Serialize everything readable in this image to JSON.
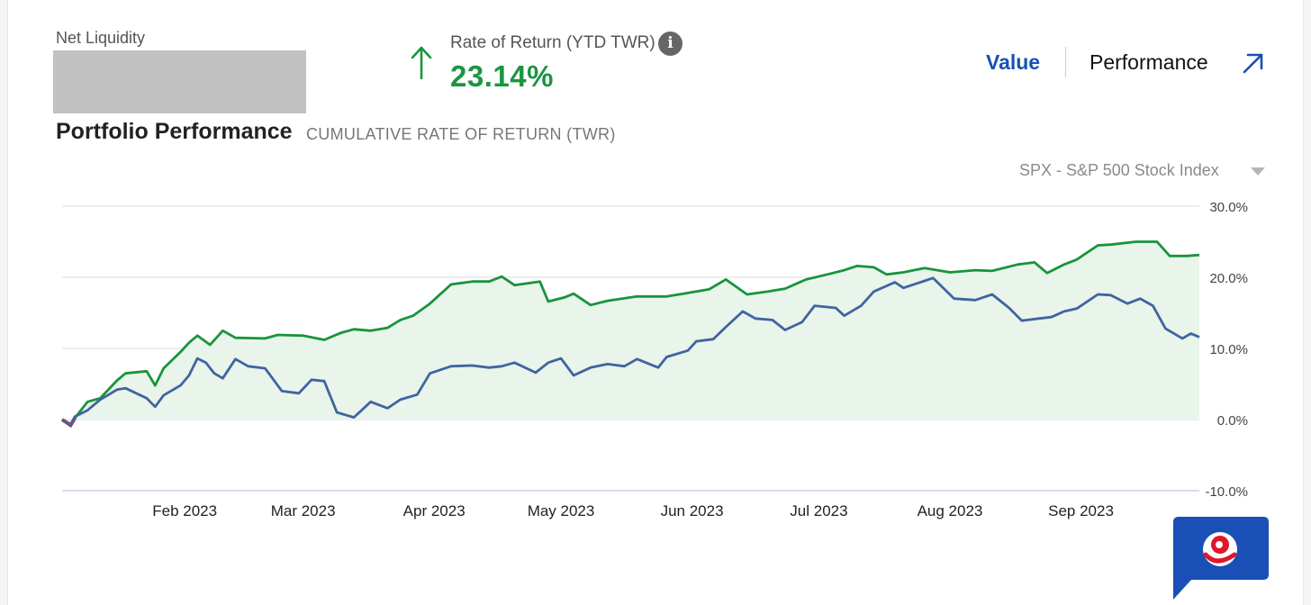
{
  "summary": {
    "net_liquidity_label": "Net Liquidity",
    "rate_of_return_label": "Rate of Return (YTD TWR)",
    "rate_of_return_value": "23.14%",
    "info_icon": "i"
  },
  "tabs": {
    "value_label": "Value",
    "performance_label": "Performance"
  },
  "header": {
    "title": "Portfolio Performance",
    "subtitle": "CUMULATIVE RATE OF RETURN (TWR)",
    "benchmark_select": "SPX - S&P 500 Stock Index"
  },
  "colors": {
    "portfolio": "#18943c",
    "benchmark": "#3f64a0",
    "area_fill": "#e9f4ea",
    "accent_blue": "#1a4fb5",
    "negative": "#e0162b"
  },
  "chart_data": {
    "type": "line",
    "ylim": [
      -10,
      30
    ],
    "y_ticks": [
      "30.0%",
      "20.0%",
      "10.0%",
      "0.0%",
      "-10.0%"
    ],
    "y_tick_values": [
      30,
      20,
      10,
      0,
      -10
    ],
    "x_range": [
      "2023-01-03",
      "2023-09-29"
    ],
    "x_ticks": [
      {
        "label": "Feb 2023",
        "date": "2023-02-01"
      },
      {
        "label": "Mar 2023",
        "date": "2023-03-01"
      },
      {
        "label": "Apr 2023",
        "date": "2023-04-01"
      },
      {
        "label": "May 2023",
        "date": "2023-05-01"
      },
      {
        "label": "Jun 2023",
        "date": "2023-06-01"
      },
      {
        "label": "Jul 2023",
        "date": "2023-07-01"
      },
      {
        "label": "Aug 2023",
        "date": "2023-08-01"
      },
      {
        "label": "Sep 2023",
        "date": "2023-09-01"
      }
    ],
    "grid": true,
    "series": [
      {
        "key": "portfolio",
        "points": [
          [
            "2023-01-03",
            0
          ],
          [
            "2023-01-05",
            -0.8
          ],
          [
            "2023-01-06",
            0.2
          ],
          [
            "2023-01-09",
            2.5
          ],
          [
            "2023-01-12",
            3.0
          ],
          [
            "2023-01-16",
            5.5
          ],
          [
            "2023-01-18",
            6.5
          ],
          [
            "2023-01-23",
            6.8
          ],
          [
            "2023-01-25",
            4.8
          ],
          [
            "2023-01-27",
            7.2
          ],
          [
            "2023-01-31",
            9.5
          ],
          [
            "2023-02-02",
            10.8
          ],
          [
            "2023-02-04",
            11.8
          ],
          [
            "2023-02-07",
            10.5
          ],
          [
            "2023-02-10",
            12.5
          ],
          [
            "2023-02-13",
            11.5
          ],
          [
            "2023-02-20",
            11.4
          ],
          [
            "2023-02-23",
            11.9
          ],
          [
            "2023-03-01",
            11.8
          ],
          [
            "2023-03-06",
            11.2
          ],
          [
            "2023-03-10",
            12.2
          ],
          [
            "2023-03-13",
            12.7
          ],
          [
            "2023-03-17",
            12.5
          ],
          [
            "2023-03-21",
            12.9
          ],
          [
            "2023-03-24",
            14.0
          ],
          [
            "2023-03-27",
            14.6
          ],
          [
            "2023-03-31",
            16.3
          ],
          [
            "2023-04-05",
            19.0
          ],
          [
            "2023-04-10",
            19.4
          ],
          [
            "2023-04-14",
            19.4
          ],
          [
            "2023-04-17",
            20.1
          ],
          [
            "2023-04-20",
            18.9
          ],
          [
            "2023-04-26",
            19.4
          ],
          [
            "2023-04-28",
            16.6
          ],
          [
            "2023-05-02",
            17.2
          ],
          [
            "2023-05-04",
            17.7
          ],
          [
            "2023-05-08",
            16.1
          ],
          [
            "2023-05-12",
            16.7
          ],
          [
            "2023-05-19",
            17.3
          ],
          [
            "2023-05-26",
            17.3
          ],
          [
            "2023-05-31",
            17.8
          ],
          [
            "2023-06-05",
            18.3
          ],
          [
            "2023-06-09",
            19.7
          ],
          [
            "2023-06-14",
            17.6
          ],
          [
            "2023-06-19",
            18.0
          ],
          [
            "2023-06-23",
            18.4
          ],
          [
            "2023-06-28",
            19.7
          ],
          [
            "2023-07-03",
            20.4
          ],
          [
            "2023-07-07",
            21.0
          ],
          [
            "2023-07-10",
            21.6
          ],
          [
            "2023-07-14",
            21.4
          ],
          [
            "2023-07-17",
            20.4
          ],
          [
            "2023-07-21",
            20.7
          ],
          [
            "2023-07-26",
            21.3
          ],
          [
            "2023-08-01",
            20.7
          ],
          [
            "2023-08-07",
            21.0
          ],
          [
            "2023-08-11",
            20.9
          ],
          [
            "2023-08-17",
            21.8
          ],
          [
            "2023-08-21",
            22.1
          ],
          [
            "2023-08-24",
            20.6
          ],
          [
            "2023-08-28",
            21.8
          ],
          [
            "2023-08-31",
            22.5
          ],
          [
            "2023-09-05",
            24.5
          ],
          [
            "2023-09-08",
            24.6
          ],
          [
            "2023-09-14",
            25.0
          ],
          [
            "2023-09-19",
            25.0
          ],
          [
            "2023-09-22",
            23.0
          ],
          [
            "2023-09-26",
            23.0
          ],
          [
            "2023-09-29",
            23.14
          ]
        ]
      },
      {
        "key": "benchmark",
        "points": [
          [
            "2023-01-03",
            0
          ],
          [
            "2023-01-05",
            -0.8
          ],
          [
            "2023-01-06",
            0.4
          ],
          [
            "2023-01-09",
            1.3
          ],
          [
            "2023-01-12",
            2.8
          ],
          [
            "2023-01-16",
            4.2
          ],
          [
            "2023-01-18",
            4.4
          ],
          [
            "2023-01-23",
            3.0
          ],
          [
            "2023-01-25",
            1.8
          ],
          [
            "2023-01-27",
            3.4
          ],
          [
            "2023-01-31",
            4.8
          ],
          [
            "2023-02-02",
            6.2
          ],
          [
            "2023-02-04",
            8.6
          ],
          [
            "2023-02-06",
            8.0
          ],
          [
            "2023-02-08",
            6.5
          ],
          [
            "2023-02-10",
            5.8
          ],
          [
            "2023-02-13",
            8.5
          ],
          [
            "2023-02-16",
            7.5
          ],
          [
            "2023-02-20",
            7.2
          ],
          [
            "2023-02-24",
            4.0
          ],
          [
            "2023-02-28",
            3.7
          ],
          [
            "2023-03-03",
            5.6
          ],
          [
            "2023-03-06",
            5.4
          ],
          [
            "2023-03-09",
            1.0
          ],
          [
            "2023-03-13",
            0.3
          ],
          [
            "2023-03-17",
            2.5
          ],
          [
            "2023-03-21",
            1.6
          ],
          [
            "2023-03-24",
            2.8
          ],
          [
            "2023-03-28",
            3.5
          ],
          [
            "2023-03-31",
            6.5
          ],
          [
            "2023-04-05",
            7.5
          ],
          [
            "2023-04-10",
            7.6
          ],
          [
            "2023-04-14",
            7.3
          ],
          [
            "2023-04-17",
            7.5
          ],
          [
            "2023-04-20",
            8.0
          ],
          [
            "2023-04-25",
            6.6
          ],
          [
            "2023-04-28",
            8.0
          ],
          [
            "2023-05-01",
            8.6
          ],
          [
            "2023-05-04",
            6.2
          ],
          [
            "2023-05-08",
            7.3
          ],
          [
            "2023-05-12",
            7.8
          ],
          [
            "2023-05-16",
            7.5
          ],
          [
            "2023-05-19",
            8.5
          ],
          [
            "2023-05-24",
            7.3
          ],
          [
            "2023-05-26",
            8.8
          ],
          [
            "2023-05-31",
            9.7
          ],
          [
            "2023-06-02",
            11.0
          ],
          [
            "2023-06-06",
            11.3
          ],
          [
            "2023-06-09",
            13.0
          ],
          [
            "2023-06-13",
            15.2
          ],
          [
            "2023-06-16",
            14.2
          ],
          [
            "2023-06-20",
            14.0
          ],
          [
            "2023-06-23",
            12.6
          ],
          [
            "2023-06-27",
            13.7
          ],
          [
            "2023-06-30",
            16.0
          ],
          [
            "2023-07-05",
            15.7
          ],
          [
            "2023-07-07",
            14.6
          ],
          [
            "2023-07-11",
            16.0
          ],
          [
            "2023-07-14",
            18.0
          ],
          [
            "2023-07-19",
            19.3
          ],
          [
            "2023-07-21",
            18.5
          ],
          [
            "2023-07-26",
            19.5
          ],
          [
            "2023-07-28",
            19.9
          ],
          [
            "2023-08-02",
            17.0
          ],
          [
            "2023-08-07",
            16.8
          ],
          [
            "2023-08-11",
            17.6
          ],
          [
            "2023-08-15",
            15.7
          ],
          [
            "2023-08-18",
            13.9
          ],
          [
            "2023-08-22",
            14.2
          ],
          [
            "2023-08-25",
            14.4
          ],
          [
            "2023-08-28",
            15.2
          ],
          [
            "2023-08-31",
            15.6
          ],
          [
            "2023-09-05",
            17.6
          ],
          [
            "2023-09-08",
            17.5
          ],
          [
            "2023-09-12",
            16.3
          ],
          [
            "2023-09-15",
            17.0
          ],
          [
            "2023-09-18",
            16.0
          ],
          [
            "2023-09-21",
            12.8
          ],
          [
            "2023-09-25",
            11.4
          ],
          [
            "2023-09-27",
            12.1
          ],
          [
            "2023-09-29",
            11.6
          ]
        ]
      }
    ]
  }
}
